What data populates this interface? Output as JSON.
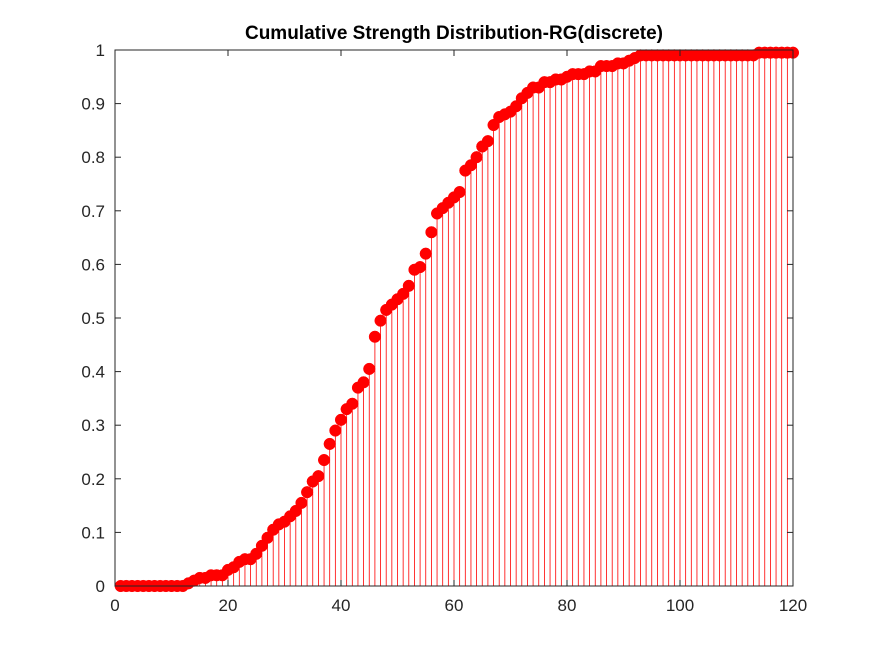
{
  "chart_data": {
    "type": "stem",
    "title": "Cumulative Strength Distribution-RG(discrete)",
    "xlabel": "",
    "ylabel": "",
    "xlim": [
      0,
      120
    ],
    "ylim": [
      0,
      1
    ],
    "xticks": [
      0,
      20,
      40,
      60,
      80,
      100,
      120
    ],
    "yticks": [
      0,
      0.1,
      0.2,
      0.3,
      0.4,
      0.5,
      0.6,
      0.7,
      0.8,
      0.9,
      1
    ],
    "xtick_labels": [
      "0",
      "20",
      "40",
      "60",
      "80",
      "100",
      "120"
    ],
    "ytick_labels": [
      "0",
      "0.1",
      "0.2",
      "0.3",
      "0.4",
      "0.5",
      "0.6",
      "0.7",
      "0.8",
      "0.9",
      "1"
    ],
    "grid": false,
    "color": "#ff0000",
    "x": [
      1,
      2,
      3,
      4,
      5,
      6,
      7,
      8,
      9,
      10,
      11,
      12,
      13,
      14,
      15,
      16,
      17,
      18,
      19,
      20,
      21,
      22,
      23,
      24,
      25,
      26,
      27,
      28,
      29,
      30,
      31,
      32,
      33,
      34,
      35,
      36,
      37,
      38,
      39,
      40,
      41,
      42,
      43,
      44,
      45,
      46,
      47,
      48,
      49,
      50,
      51,
      52,
      53,
      54,
      55,
      56,
      57,
      58,
      59,
      60,
      61,
      62,
      63,
      64,
      65,
      66,
      67,
      68,
      69,
      70,
      71,
      72,
      73,
      74,
      75,
      76,
      77,
      78,
      79,
      80,
      81,
      82,
      83,
      84,
      85,
      86,
      87,
      88,
      89,
      90,
      91,
      92,
      93,
      94,
      95,
      96,
      97,
      98,
      99,
      100,
      101,
      102,
      103,
      104,
      105,
      106,
      107,
      108,
      109,
      110,
      111,
      112,
      113,
      114,
      115,
      116,
      117,
      118,
      119,
      120
    ],
    "y": [
      0,
      0,
      0,
      0,
      0,
      0,
      0,
      0,
      0,
      0,
      0,
      0,
      0.005,
      0.01,
      0.015,
      0.015,
      0.02,
      0.02,
      0.02,
      0.03,
      0.035,
      0.045,
      0.05,
      0.05,
      0.06,
      0.075,
      0.09,
      0.105,
      0.115,
      0.12,
      0.13,
      0.14,
      0.155,
      0.175,
      0.195,
      0.205,
      0.235,
      0.265,
      0.29,
      0.31,
      0.33,
      0.34,
      0.37,
      0.38,
      0.405,
      0.465,
      0.495,
      0.515,
      0.525,
      0.535,
      0.545,
      0.56,
      0.59,
      0.595,
      0.62,
      0.66,
      0.695,
      0.705,
      0.715,
      0.725,
      0.735,
      0.775,
      0.785,
      0.8,
      0.82,
      0.83,
      0.86,
      0.875,
      0.88,
      0.885,
      0.895,
      0.91,
      0.92,
      0.93,
      0.93,
      0.94,
      0.94,
      0.945,
      0.945,
      0.95,
      0.955,
      0.955,
      0.955,
      0.96,
      0.96,
      0.97,
      0.97,
      0.97,
      0.975,
      0.975,
      0.98,
      0.985,
      0.99,
      0.99,
      0.99,
      0.99,
      0.99,
      0.99,
      0.99,
      0.99,
      0.99,
      0.99,
      0.99,
      0.99,
      0.99,
      0.99,
      0.99,
      0.99,
      0.99,
      0.99,
      0.99,
      0.99,
      0.99,
      0.995,
      0.995,
      0.995,
      0.995,
      0.995,
      0.995,
      0.995
    ]
  }
}
